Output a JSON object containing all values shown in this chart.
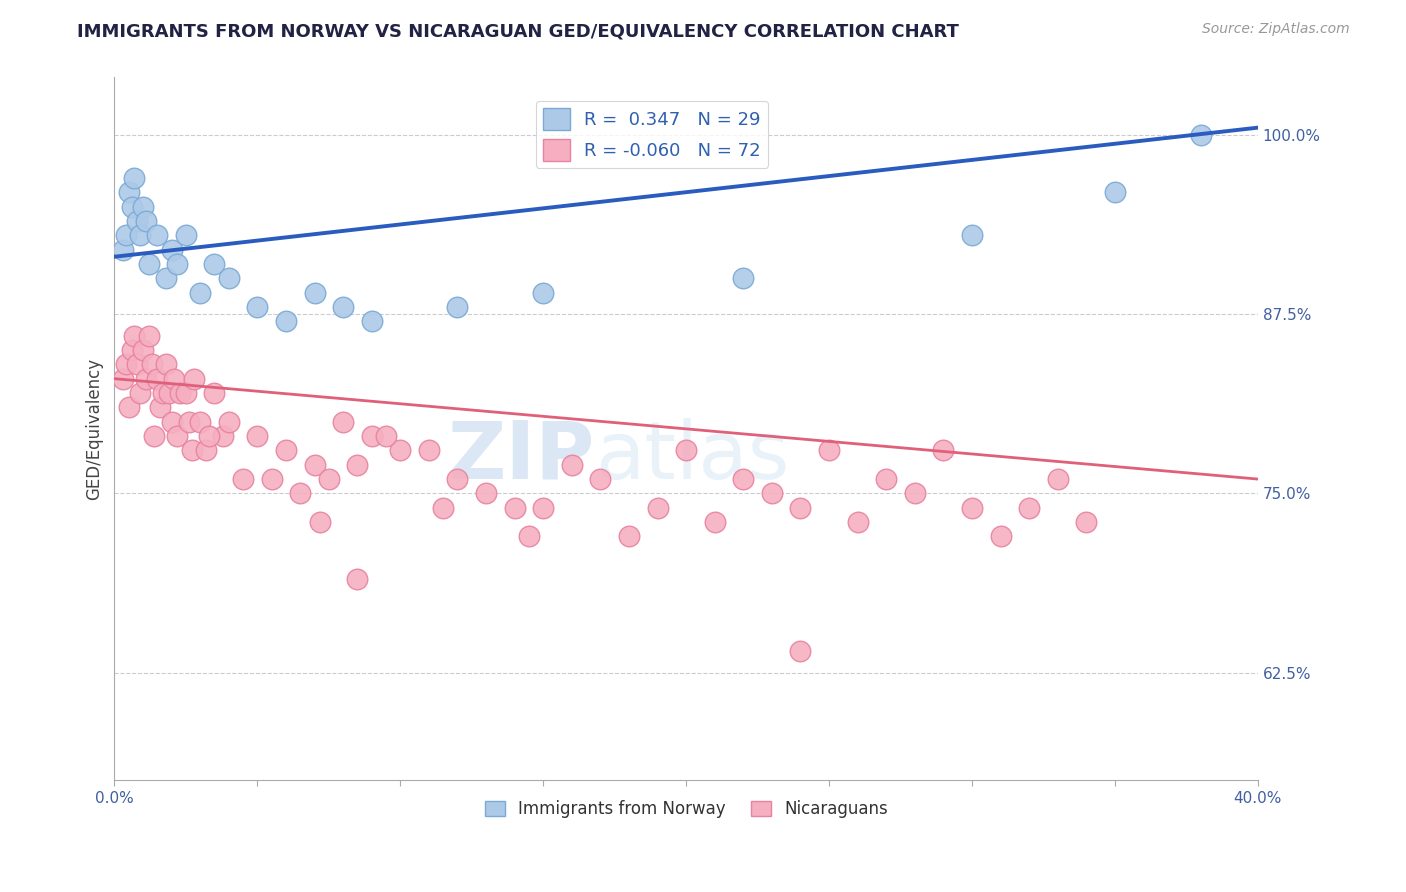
{
  "title": "IMMIGRANTS FROM NORWAY VS NICARAGUAN GED/EQUIVALENCY CORRELATION CHART",
  "source": "Source: ZipAtlas.com",
  "ylabel": "GED/Equivalency",
  "xmin": 0.0,
  "xmax": 40.0,
  "ymin": 55.0,
  "ymax": 104.0,
  "right_yticks": [
    62.5,
    75.0,
    87.5,
    100.0
  ],
  "right_ytick_labels": [
    "62.5%",
    "75.0%",
    "87.5%",
    "100.0%"
  ],
  "legend_blue_label": "R =  0.347   N = 29",
  "legend_pink_label": "R = -0.060   N = 72",
  "norway_color": "#adc9e8",
  "nicaragua_color": "#f5afc0",
  "norway_edge": "#7aaad4",
  "nicaragua_edge": "#e882a0",
  "trendline_blue": "#2a5cbf",
  "trendline_pink": "#e0607a",
  "blue_trend_x0": 0.0,
  "blue_trend_y0": 91.5,
  "blue_trend_x1": 40.0,
  "blue_trend_y1": 100.5,
  "pink_trend_x0": 0.0,
  "pink_trend_y0": 83.0,
  "pink_trend_x1": 40.0,
  "pink_trend_y1": 76.0,
  "norway_x": [
    0.3,
    0.4,
    0.5,
    0.6,
    0.7,
    0.8,
    0.9,
    1.0,
    1.1,
    1.2,
    1.5,
    1.8,
    2.0,
    2.2,
    2.5,
    3.0,
    3.5,
    4.0,
    5.0,
    6.0,
    7.0,
    8.0,
    9.0,
    12.0,
    15.0,
    22.0,
    30.0,
    35.0,
    38.0
  ],
  "norway_y": [
    92,
    93,
    96,
    95,
    97,
    94,
    93,
    95,
    94,
    91,
    93,
    90,
    92,
    91,
    93,
    89,
    91,
    90,
    88,
    87,
    89,
    88,
    87,
    88,
    89,
    90,
    93,
    96,
    100
  ],
  "nicaragua_x": [
    0.3,
    0.4,
    0.5,
    0.6,
    0.7,
    0.8,
    0.9,
    1.0,
    1.1,
    1.2,
    1.3,
    1.4,
    1.5,
    1.6,
    1.7,
    1.8,
    1.9,
    2.0,
    2.1,
    2.2,
    2.3,
    2.5,
    2.6,
    2.7,
    2.8,
    3.0,
    3.2,
    3.5,
    3.8,
    4.0,
    4.5,
    5.0,
    5.5,
    6.0,
    6.5,
    7.0,
    7.5,
    8.0,
    8.5,
    9.0,
    10.0,
    11.0,
    12.0,
    13.0,
    14.0,
    14.5,
    15.0,
    16.0,
    17.0,
    18.0,
    19.0,
    20.0,
    21.0,
    22.0,
    23.0,
    24.0,
    25.0,
    26.0,
    27.0,
    28.0,
    29.0,
    30.0,
    31.0,
    32.0,
    33.0,
    34.0,
    24.0,
    3.3,
    7.2,
    8.5,
    9.5,
    11.5
  ],
  "nicaragua_y": [
    83,
    84,
    81,
    85,
    86,
    84,
    82,
    85,
    83,
    86,
    84,
    79,
    83,
    81,
    82,
    84,
    82,
    80,
    83,
    79,
    82,
    82,
    80,
    78,
    83,
    80,
    78,
    82,
    79,
    80,
    76,
    79,
    76,
    78,
    75,
    77,
    76,
    80,
    77,
    79,
    78,
    78,
    76,
    75,
    74,
    72,
    74,
    77,
    76,
    72,
    74,
    78,
    73,
    76,
    75,
    74,
    78,
    73,
    76,
    75,
    78,
    74,
    72,
    74,
    76,
    73,
    64,
    79,
    73,
    69,
    79,
    74
  ]
}
